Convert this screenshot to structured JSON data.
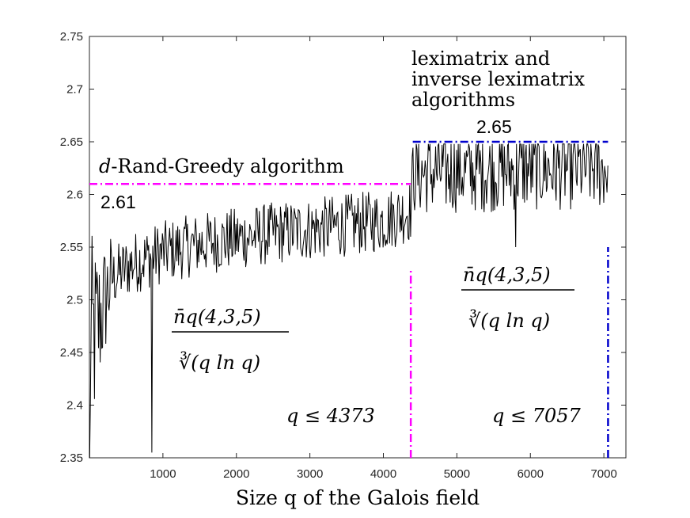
{
  "chart_data": {
    "type": "line",
    "title": "",
    "xlabel": "Size q of the Galois field",
    "ylabel": "",
    "xlim": [
      0,
      7300
    ],
    "ylim": [
      2.35,
      2.75
    ],
    "xticks": [
      1000,
      2000,
      3000,
      4000,
      5000,
      6000,
      7000
    ],
    "yticks": [
      2.35,
      2.4,
      2.45,
      2.5,
      2.55,
      2.6,
      2.65,
      2.7,
      2.75
    ],
    "xtick_labels": [
      "1000",
      "2000",
      "3000",
      "4000",
      "5000",
      "6000",
      "7000"
    ],
    "ytick_labels": [
      "2.35",
      "2.4",
      "2.45",
      "2.5",
      "2.55",
      "2.6",
      "2.65",
      "2.7",
      "2.75"
    ],
    "series": [
      {
        "name": "n̄q(4,3,5)/∛(q ln q)",
        "color": "#000000",
        "description": "noisy ratio, rising from ~2.45 at small q to ~2.58 near q=4373, then ~2.60–2.65 up to q=7057",
        "anchor_x": [
          3,
          300,
          600,
          1000,
          1500,
          2000,
          2500,
          3000,
          3500,
          4000,
          4373,
          4400,
          5000,
          5500,
          6000,
          6500,
          7057
        ],
        "anchor_y": [
          2.45,
          2.52,
          2.535,
          2.545,
          2.553,
          2.558,
          2.563,
          2.567,
          2.571,
          2.575,
          2.585,
          2.62,
          2.622,
          2.623,
          2.624,
          2.625,
          2.625
        ],
        "outliers": [
          {
            "x": 3,
            "y": 2.35
          },
          {
            "x": 850,
            "y": 2.355
          },
          {
            "x": 5800,
            "y": 2.55
          }
        ]
      }
    ],
    "reference_lines": [
      {
        "kind": "horizontal",
        "y": 2.61,
        "x_range": [
          0,
          4373
        ],
        "color": "#ff00ff",
        "style": "dash-dot",
        "label": "2.61"
      },
      {
        "kind": "horizontal",
        "y": 2.65,
        "x_range": [
          4400,
          7057
        ],
        "color": "#0000cc",
        "style": "dash-dot",
        "label": "2.65"
      },
      {
        "kind": "vertical",
        "x": 4373,
        "y_range": [
          2.35,
          2.53
        ],
        "color": "#ff00ff",
        "style": "dash-dot"
      },
      {
        "kind": "vertical",
        "x": 7057,
        "y_range": [
          2.35,
          2.55
        ],
        "color": "#0000cc",
        "style": "dash-dot"
      }
    ],
    "annotations": {
      "left_algorithm": "d-Rand-Greedy algorithm",
      "right_algorithm_line1": "leximatrix and",
      "right_algorithm_line2": "inverse leximatrix",
      "right_algorithm_line3": "algorithms",
      "value_left": "2.61",
      "value_right": "2.65",
      "bound_left": "q ≤ 4373",
      "bound_right": "q ≤ 7057",
      "formula_numerator": "n̄q(4,3,5)",
      "formula_denominator": "∛(q ln q)"
    }
  }
}
